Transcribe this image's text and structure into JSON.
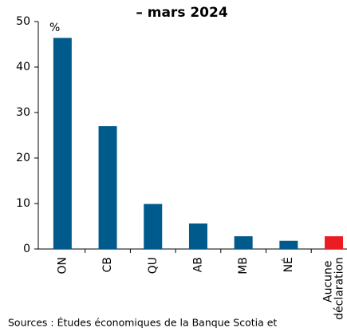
{
  "chart_data": {
    "type": "bar",
    "title": "– mars 2024",
    "annotation": "%",
    "categories": [
      "ON",
      "CB",
      "QU",
      "AB",
      "MB",
      "NÉ",
      "Aucune déclaration"
    ],
    "values": [
      46.4,
      27.0,
      9.9,
      5.6,
      2.8,
      1.8,
      2.8
    ],
    "colors": [
      "#005a8c",
      "#005a8c",
      "#005a8c",
      "#005a8c",
      "#005a8c",
      "#005a8c",
      "#ec1c24"
    ],
    "ylim": [
      0,
      50
    ],
    "yticks": [
      0,
      10,
      20,
      30,
      40,
      50
    ],
    "grid": false,
    "source": "Sources : Études économiques de la Banque Scotia et"
  }
}
